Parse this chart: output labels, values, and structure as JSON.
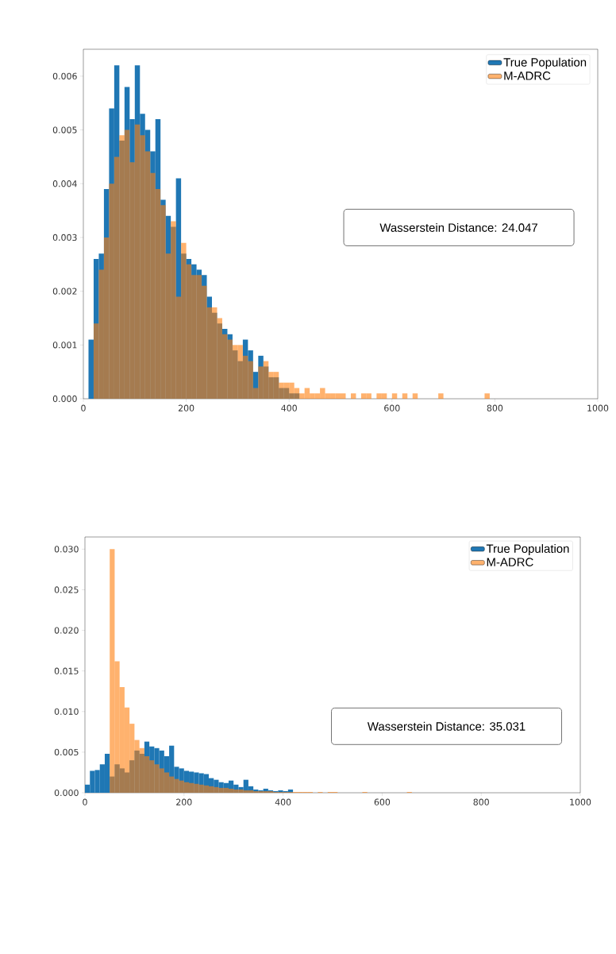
{
  "chart_data": [
    {
      "type": "histogram",
      "xlim": [
        0,
        1000
      ],
      "ylim": [
        0,
        0.0065
      ],
      "xticks": [
        {
          "value": 0,
          "label": "0"
        },
        {
          "value": 200,
          "label": "200"
        },
        {
          "value": 400,
          "label": "400"
        },
        {
          "value": 600,
          "label": "600"
        },
        {
          "value": 800,
          "label": "800"
        },
        {
          "value": 1000,
          "label": "1000"
        }
      ],
      "yticks": [
        {
          "value": 0,
          "label": "0.000"
        },
        {
          "value": 0.001,
          "label": "0.001"
        },
        {
          "value": 0.002,
          "label": "0.002"
        },
        {
          "value": 0.003,
          "label": "0.003"
        },
        {
          "value": 0.004,
          "label": "0.004"
        },
        {
          "value": 0.005,
          "label": "0.005"
        },
        {
          "value": 0.006,
          "label": "0.006"
        }
      ],
      "legend": "top right",
      "grid": false,
      "annotations": [
        "Wasserstein Distance: 24.047"
      ],
      "bins": [
        0,
        10,
        20,
        30,
        40,
        50,
        60,
        70,
        80,
        90,
        100,
        110,
        120,
        130,
        140,
        150,
        160,
        170,
        180,
        190,
        200,
        210,
        220,
        230,
        240,
        250,
        260,
        270,
        280,
        290,
        300,
        310,
        320,
        330,
        340,
        350,
        360,
        370,
        380,
        390,
        400,
        410,
        420,
        430,
        440,
        450,
        460,
        470,
        480,
        490,
        500,
        510,
        520,
        530,
        540,
        550,
        560,
        570,
        580,
        590,
        600,
        610,
        620,
        630,
        640,
        650,
        660,
        670,
        680,
        690,
        700,
        710,
        720,
        730,
        740,
        750,
        760,
        770,
        780,
        790
      ],
      "series": [
        {
          "name": "True Population",
          "color": "#1f77b4",
          "values": [
            null,
            0.0011,
            0.0026,
            0.0027,
            0.0039,
            0.0054,
            0.0062,
            0.0048,
            0.0058,
            0.0052,
            0.0062,
            0.0053,
            0.005,
            0.0046,
            0.0052,
            0.0037,
            0.0034,
            0.0032,
            0.0041,
            0.0027,
            0.0026,
            0.0025,
            0.0024,
            0.0023,
            0.0019,
            0.0016,
            0.0014,
            0.0013,
            0.0012,
            0.0009,
            0.0007,
            0.0011,
            0.0009,
            0.0005,
            0.0008,
            0.0006,
            0.0004,
            0.0004,
            0.0002,
            0.0002,
            0.0001,
            0.0001,
            null,
            null,
            null,
            null,
            null,
            null,
            null,
            null,
            null,
            null,
            null,
            null,
            null,
            null,
            null,
            null,
            null,
            null,
            null,
            null,
            null,
            null,
            null,
            null,
            null,
            null,
            null,
            null,
            null,
            null,
            null,
            null,
            null,
            null,
            null,
            null,
            null
          ]
        },
        {
          "name": "M-ADRC",
          "color": "#ff7f0e",
          "values": [
            null,
            null,
            0.0014,
            0.0024,
            0.003,
            0.004,
            0.0045,
            0.0049,
            0.005,
            0.0044,
            0.0051,
            0.0049,
            0.0046,
            0.0042,
            0.0039,
            0.0036,
            0.0027,
            0.0033,
            0.0019,
            0.0029,
            0.0025,
            0.0023,
            0.0023,
            0.0021,
            0.0017,
            0.0017,
            0.0015,
            0.0012,
            0.0011,
            0.001,
            0.001,
            0.0008,
            0.0007,
            0.0002,
            0.0006,
            0.0007,
            0.0005,
            0.0005,
            0.0003,
            0.0003,
            0.0003,
            0.0002,
            0.0001,
            0.0002,
            0.0001,
            0.0001,
            0.0002,
            0.0001,
            0.0001,
            0.0001,
            0.0001,
            0,
            0.0001,
            0,
            0.0001,
            0.0001,
            0,
            0.0001,
            0.0001,
            0,
            0.0001,
            0,
            0.0001,
            0,
            0.0001,
            0,
            0,
            0,
            0,
            0.0001,
            0,
            0,
            0,
            0,
            0,
            0,
            0,
            0,
            0.0001
          ]
        }
      ]
    },
    {
      "type": "histogram",
      "xlim": [
        0,
        1000
      ],
      "ylim": [
        0,
        0.0315
      ],
      "xticks": [
        {
          "value": 0,
          "label": "0"
        },
        {
          "value": 200,
          "label": "200"
        },
        {
          "value": 400,
          "label": "400"
        },
        {
          "value": 600,
          "label": "600"
        },
        {
          "value": 800,
          "label": "800"
        },
        {
          "value": 1000,
          "label": "1000"
        }
      ],
      "yticks": [
        {
          "value": 0,
          "label": "0.000"
        },
        {
          "value": 0.005,
          "label": "0.005"
        },
        {
          "value": 0.01,
          "label": "0.010"
        },
        {
          "value": 0.015,
          "label": "0.015"
        },
        {
          "value": 0.02,
          "label": "0.020"
        },
        {
          "value": 0.025,
          "label": "0.025"
        },
        {
          "value": 0.03,
          "label": "0.030"
        }
      ],
      "legend": "top right",
      "grid": false,
      "annotations": [
        "Wasserstein Distance: 35.031"
      ],
      "bins": [
        0,
        10,
        20,
        30,
        40,
        50,
        60,
        70,
        80,
        90,
        100,
        110,
        120,
        130,
        140,
        150,
        160,
        170,
        180,
        190,
        200,
        210,
        220,
        230,
        240,
        250,
        260,
        270,
        280,
        290,
        300,
        310,
        320,
        330,
        340,
        350,
        360,
        370,
        380,
        390,
        400,
        410,
        420,
        430,
        440,
        450,
        460,
        470,
        480,
        490,
        500,
        510,
        520,
        530,
        540,
        550,
        560,
        570,
        580,
        590,
        600,
        610,
        620,
        630,
        640,
        650,
        660
      ],
      "series": [
        {
          "name": "True Population",
          "color": "#1f77b4",
          "values": [
            0.001,
            0.0027,
            0.0028,
            0.0035,
            0.0048,
            0.002,
            0.0035,
            0.003,
            0.0025,
            0.004,
            0.0052,
            0.0048,
            0.0063,
            0.0057,
            0.0055,
            0.0052,
            0.0045,
            0.0058,
            0.0032,
            0.003,
            0.0027,
            0.0026,
            0.0025,
            0.0024,
            0.0023,
            0.0018,
            0.0016,
            0.0013,
            0.0012,
            0.0015,
            0.001,
            0.0007,
            0.0016,
            0.0008,
            0.0004,
            0.0003,
            0.0005,
            0.0003,
            0.0002,
            0.0003,
            0.0002,
            0.0004,
            null,
            null,
            null,
            null,
            null,
            null,
            null,
            null,
            null,
            null,
            null,
            null,
            null,
            null,
            null,
            null,
            null,
            null,
            null,
            null,
            null,
            null,
            null,
            null
          ]
        },
        {
          "name": "M-ADRC",
          "color": "#ff7f0e",
          "values": [
            null,
            null,
            null,
            null,
            null,
            0.03,
            0.0162,
            0.013,
            0.0105,
            0.0085,
            0.0065,
            0.0055,
            0.0045,
            0.004,
            0.0035,
            0.003,
            0.0025,
            0.002,
            0.0017,
            0.0015,
            0.0013,
            0.0012,
            0.0011,
            0.001,
            0.0009,
            0.0008,
            0.0007,
            0.0006,
            0.0006,
            0.0005,
            0.0004,
            0.0004,
            0.0003,
            0.0003,
            0.0002,
            0.0002,
            0.0002,
            0.0002,
            0.0001,
            0.0001,
            0.0001,
            0.0001,
            0.0001,
            0.0001,
            0.0001,
            0.0001,
            0,
            0.0001,
            0,
            0.0001,
            0.0001,
            0,
            0,
            0,
            0,
            0,
            0.0001,
            0,
            0,
            0,
            0,
            0,
            0,
            0,
            0,
            0.0001
          ]
        }
      ]
    }
  ]
}
